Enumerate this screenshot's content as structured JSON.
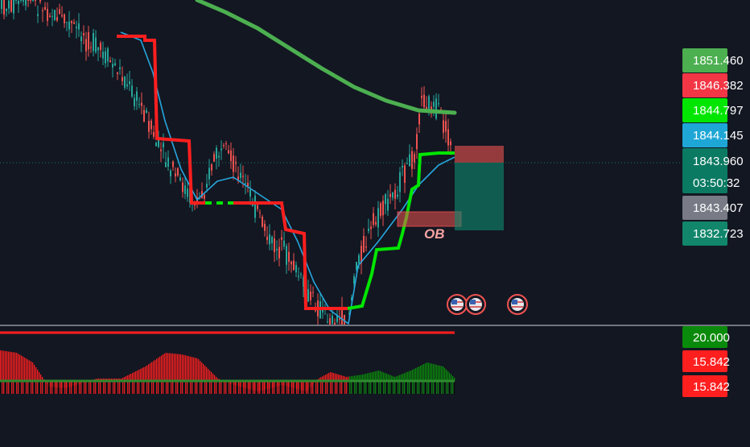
{
  "price_scale": {
    "labels": [
      {
        "value": "1851.460",
        "color": "#4caf50"
      },
      {
        "value": "1846.382",
        "color": "#f23645"
      },
      {
        "value": "1844.797",
        "color": "#00e600"
      },
      {
        "value": "1844.145",
        "color": "#1ea7d6"
      },
      {
        "value": "1843.960",
        "color": "#0b7a62",
        "countdown": "03:50:32"
      },
      {
        "value": "1843.407",
        "color": "#787b86"
      },
      {
        "value": "1832.723",
        "color": "#11866b"
      }
    ]
  },
  "oscillator_scale": {
    "labels": [
      {
        "value": "20.000",
        "color": "#0a8a0a"
      },
      {
        "value": "15.842",
        "color": "#ff1f1f"
      },
      {
        "value": "15.842",
        "color": "#ff1f1f"
      }
    ]
  },
  "annotations": {
    "order_block_label": "OB"
  },
  "event_icons": [
    "us-flag-icon",
    "us-flag-icon",
    "us-flag-icon"
  ],
  "colors": {
    "background": "#131722",
    "bull": "#26a69a",
    "bear": "#ef5350",
    "ema_long": "#4caf50",
    "ema_short": "#26a7de",
    "stop_red": "#ff1f1f",
    "stop_green": "#00e600"
  },
  "chart_data": {
    "type": "candlestick",
    "price_pane": {
      "visible_price_labels": [
        1851.46,
        1846.382,
        1844.797,
        1844.145,
        1843.96,
        1843.407,
        1832.723
      ],
      "last_price": 1843.96,
      "time_to_bar_close": "03:50:32",
      "series": [
        {
          "kind": "moving-average",
          "color": "#4caf50"
        },
        {
          "kind": "moving-average",
          "color": "#26a7de"
        },
        {
          "kind": "trailing-stop",
          "colors": [
            "#ff1f1f",
            "#00e600"
          ]
        }
      ],
      "position_tool": {
        "entry": 1843.96,
        "stop": 1846.382,
        "target": 1832.723
      },
      "order_block": {
        "label": "OB"
      }
    },
    "oscillator_pane": {
      "visible_labels": [
        20.0,
        15.842,
        15.842
      ],
      "type": "histogram"
    }
  }
}
